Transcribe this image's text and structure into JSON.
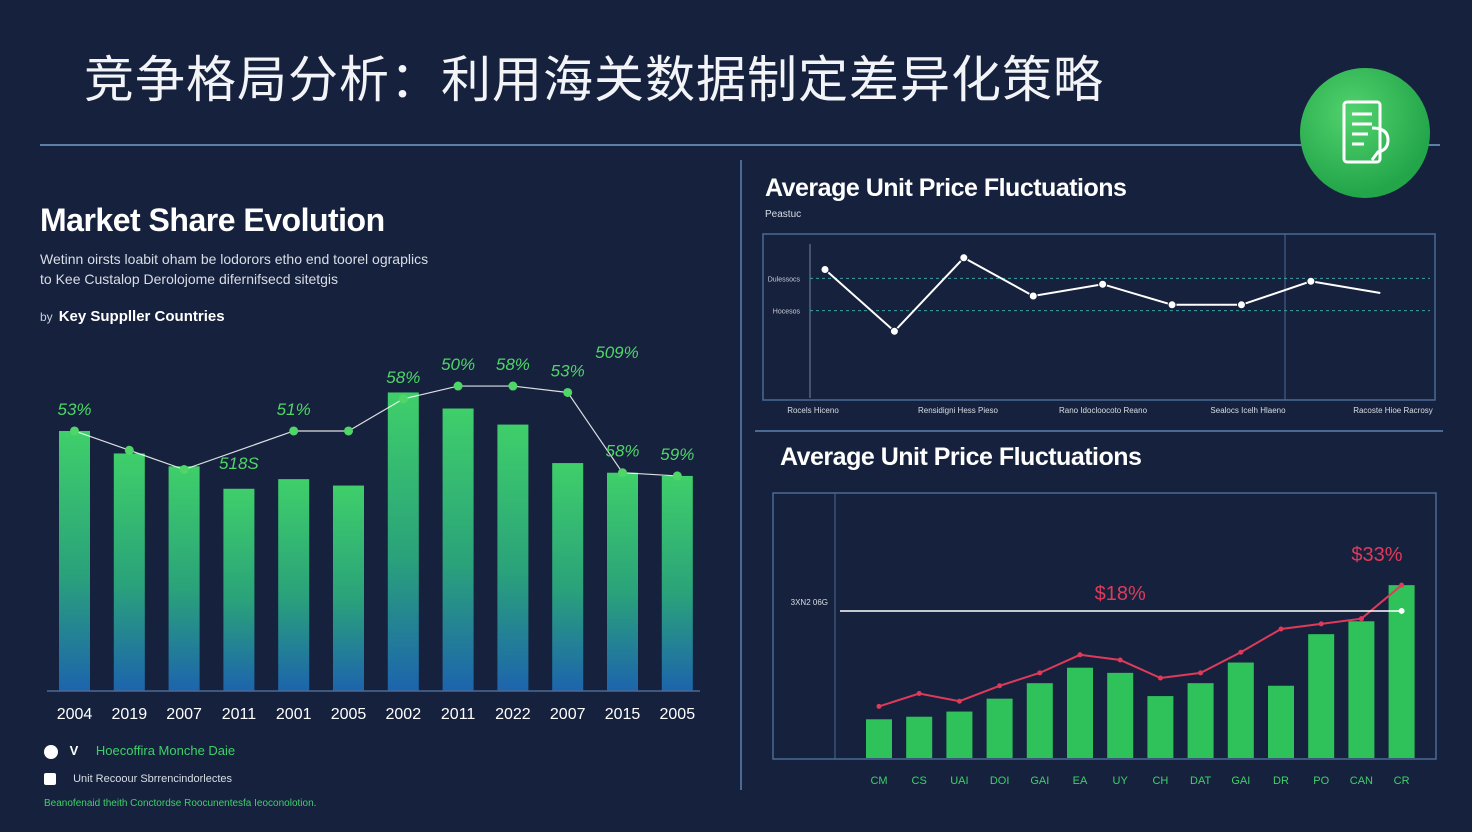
{
  "header": {
    "title": "竞争格局分析：利用海关数据制定差异化策略",
    "icon": "document-icon"
  },
  "left_panel": {
    "title": "Market Share Evolution",
    "subtitle_line1": "Wetinn oirsts loabit oham be lodorors etho end toorel ograplics",
    "subtitle_line2": "to Kee Custalop Derolojome difernifsecd sitetgis",
    "by_prefix": "by",
    "by_label": "Key Suppller Countries",
    "legend": [
      {
        "icon": "info-icon",
        "letter": "V",
        "text": "Hoecoffira Monche Daie"
      },
      {
        "icon": "tag-icon",
        "letter": "",
        "text": "Unit Recoour Sbrrencindorlectes"
      }
    ],
    "footer": "Beanofenaid theith Conctordse Roocunentesfa Ieoconolotion."
  },
  "chart_data": [
    {
      "type": "bar",
      "title": "Market Share Evolution",
      "categories": [
        "2004",
        "2019",
        "2007",
        "2011",
        "2001",
        "2005",
        "2002",
        "2011",
        "2022",
        "2007",
        "2015",
        "2005"
      ],
      "series": [
        {
          "values": [
            81,
            74,
            70,
            63,
            66,
            64,
            93,
            88,
            83,
            71,
            68,
            67
          ]
        }
      ],
      "line_markers": [
        81,
        75,
        69,
        null,
        81,
        81,
        91,
        95,
        95,
        93,
        68,
        67
      ],
      "data_labels": [
        "53%",
        "",
        "",
        "518S",
        "51%",
        "",
        "58%",
        "50%",
        "58%",
        "53%",
        "58%",
        "59%"
      ],
      "extra_labels": [
        "509%"
      ],
      "ylim": [
        0,
        100
      ],
      "colors": {
        "bar_top": "#3fcf6a",
        "bar_bottom": "#1d64ad",
        "label": "#4fd568",
        "line": "#ffffff"
      }
    },
    {
      "type": "line",
      "title": "Average Unit Price   Fluctuations",
      "subtitle": "Peastuc",
      "x": [
        1,
        2,
        3,
        4,
        5,
        6,
        7,
        8,
        9
      ],
      "series": [
        {
          "values": [
            62,
            41,
            66,
            53,
            57,
            50,
            50,
            58,
            54
          ]
        }
      ],
      "ytick_labels": [
        "Dulessocs",
        "Hocesos"
      ],
      "xtick_labels": [
        "Rocels Hiceno",
        "Rensidigni Hess Pieso",
        "Rano Idocloocoto Reano",
        "Sealocs Icelh Hlaeno",
        "Racoste Hioe Racrosy"
      ],
      "ylim": [
        20,
        70
      ],
      "grid": true,
      "colors": {
        "line": "#ffffff",
        "marker": "#ffffff",
        "grid": "#3aa2a0"
      }
    },
    {
      "type": "bar",
      "title": "Average Unit Price Fluctuations",
      "categories": [
        "CM",
        "CS",
        "UAI",
        "DOI",
        "GAI",
        "EA",
        "UY",
        "CH",
        "DAT",
        "GAI",
        "DR",
        "PO",
        "CAN",
        "CR"
      ],
      "series": [
        {
          "values": [
            15,
            16,
            18,
            23,
            29,
            35,
            33,
            24,
            29,
            37,
            28,
            48,
            53,
            67
          ]
        }
      ],
      "line_series": [
        {
          "name": "",
          "values": [
            20,
            25,
            22,
            28,
            33,
            40,
            38,
            31,
            33,
            41,
            50,
            52,
            54,
            67
          ],
          "color": "#e03a5b"
        },
        {
          "name": "",
          "values": [
            57,
            57,
            57,
            57,
            57,
            57,
            57,
            57,
            57,
            57,
            57,
            57,
            57,
            57
          ],
          "color": "#ffffff"
        }
      ],
      "ytick_labels": [
        "3XN2 06G"
      ],
      "callouts": [
        "$18%",
        "$33%"
      ],
      "ylim": [
        0,
        100
      ],
      "colors": {
        "bar": "#2fc25a",
        "callout": "#e03a5b"
      }
    }
  ],
  "right_top": {
    "title": "Average Unit Price   Fluctuations",
    "subtitle": "Peastuc"
  },
  "right_bottom": {
    "title": "Average Unit Price Fluctuations"
  }
}
